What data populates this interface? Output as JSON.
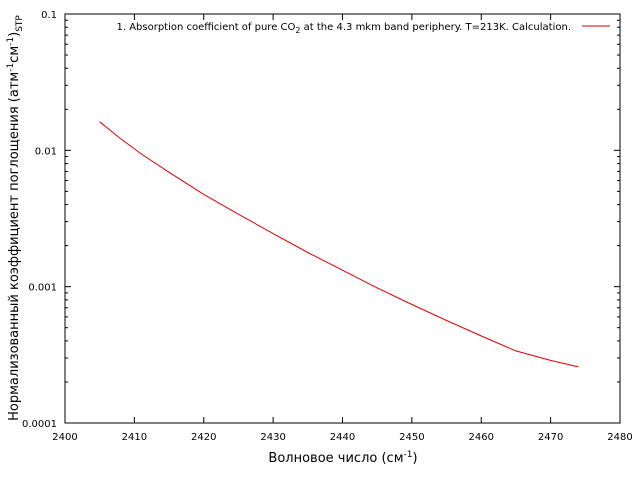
{
  "chart_data": {
    "type": "line",
    "xlabel": {
      "main": "Волновое число (см",
      "sup": "-1",
      "tail": ")"
    },
    "ylabel": {
      "p1": "Нормализованный коэффициент поглощения (атм",
      "sup1": "-1",
      "p2": "см",
      "sup2": "-1",
      "p3": ")",
      "sub": "STP"
    },
    "xlim": [
      2400,
      2480
    ],
    "ylim": [
      0.0001,
      0.1
    ],
    "yscale": "log",
    "x_ticks": [
      2400,
      2410,
      2420,
      2430,
      2440,
      2450,
      2460,
      2470,
      2480
    ],
    "x_tick_labels": [
      "2400",
      "2410",
      "2420",
      "2430",
      "2440",
      "2450",
      "2460",
      "2470",
      "2480"
    ],
    "y_ticks": [
      0.0001,
      0.001,
      0.01,
      0.1
    ],
    "y_tick_labels": [
      "0.0001",
      "0.001",
      "0.01",
      "0.1"
    ],
    "grid": false,
    "legend_position": "top-right",
    "series": [
      {
        "name": {
          "pre": "1. Absorption coefficient of pure CO",
          "sub": "2",
          "post": " at the 4.3 mkm band periphery. T=213K. Calculation."
        },
        "color": "#e00000",
        "x": [
          2405,
          2408,
          2411,
          2415,
          2420,
          2425,
          2430,
          2435,
          2440,
          2445,
          2450,
          2455,
          2460,
          2465,
          2470,
          2474
        ],
        "y": [
          0.0162,
          0.0122,
          0.0094,
          0.0069,
          0.00475,
          0.0034,
          0.00245,
          0.00178,
          0.00132,
          0.00098,
          0.00074,
          0.000565,
          0.000435,
          0.000338,
          0.000288,
          0.000258
        ]
      }
    ]
  }
}
